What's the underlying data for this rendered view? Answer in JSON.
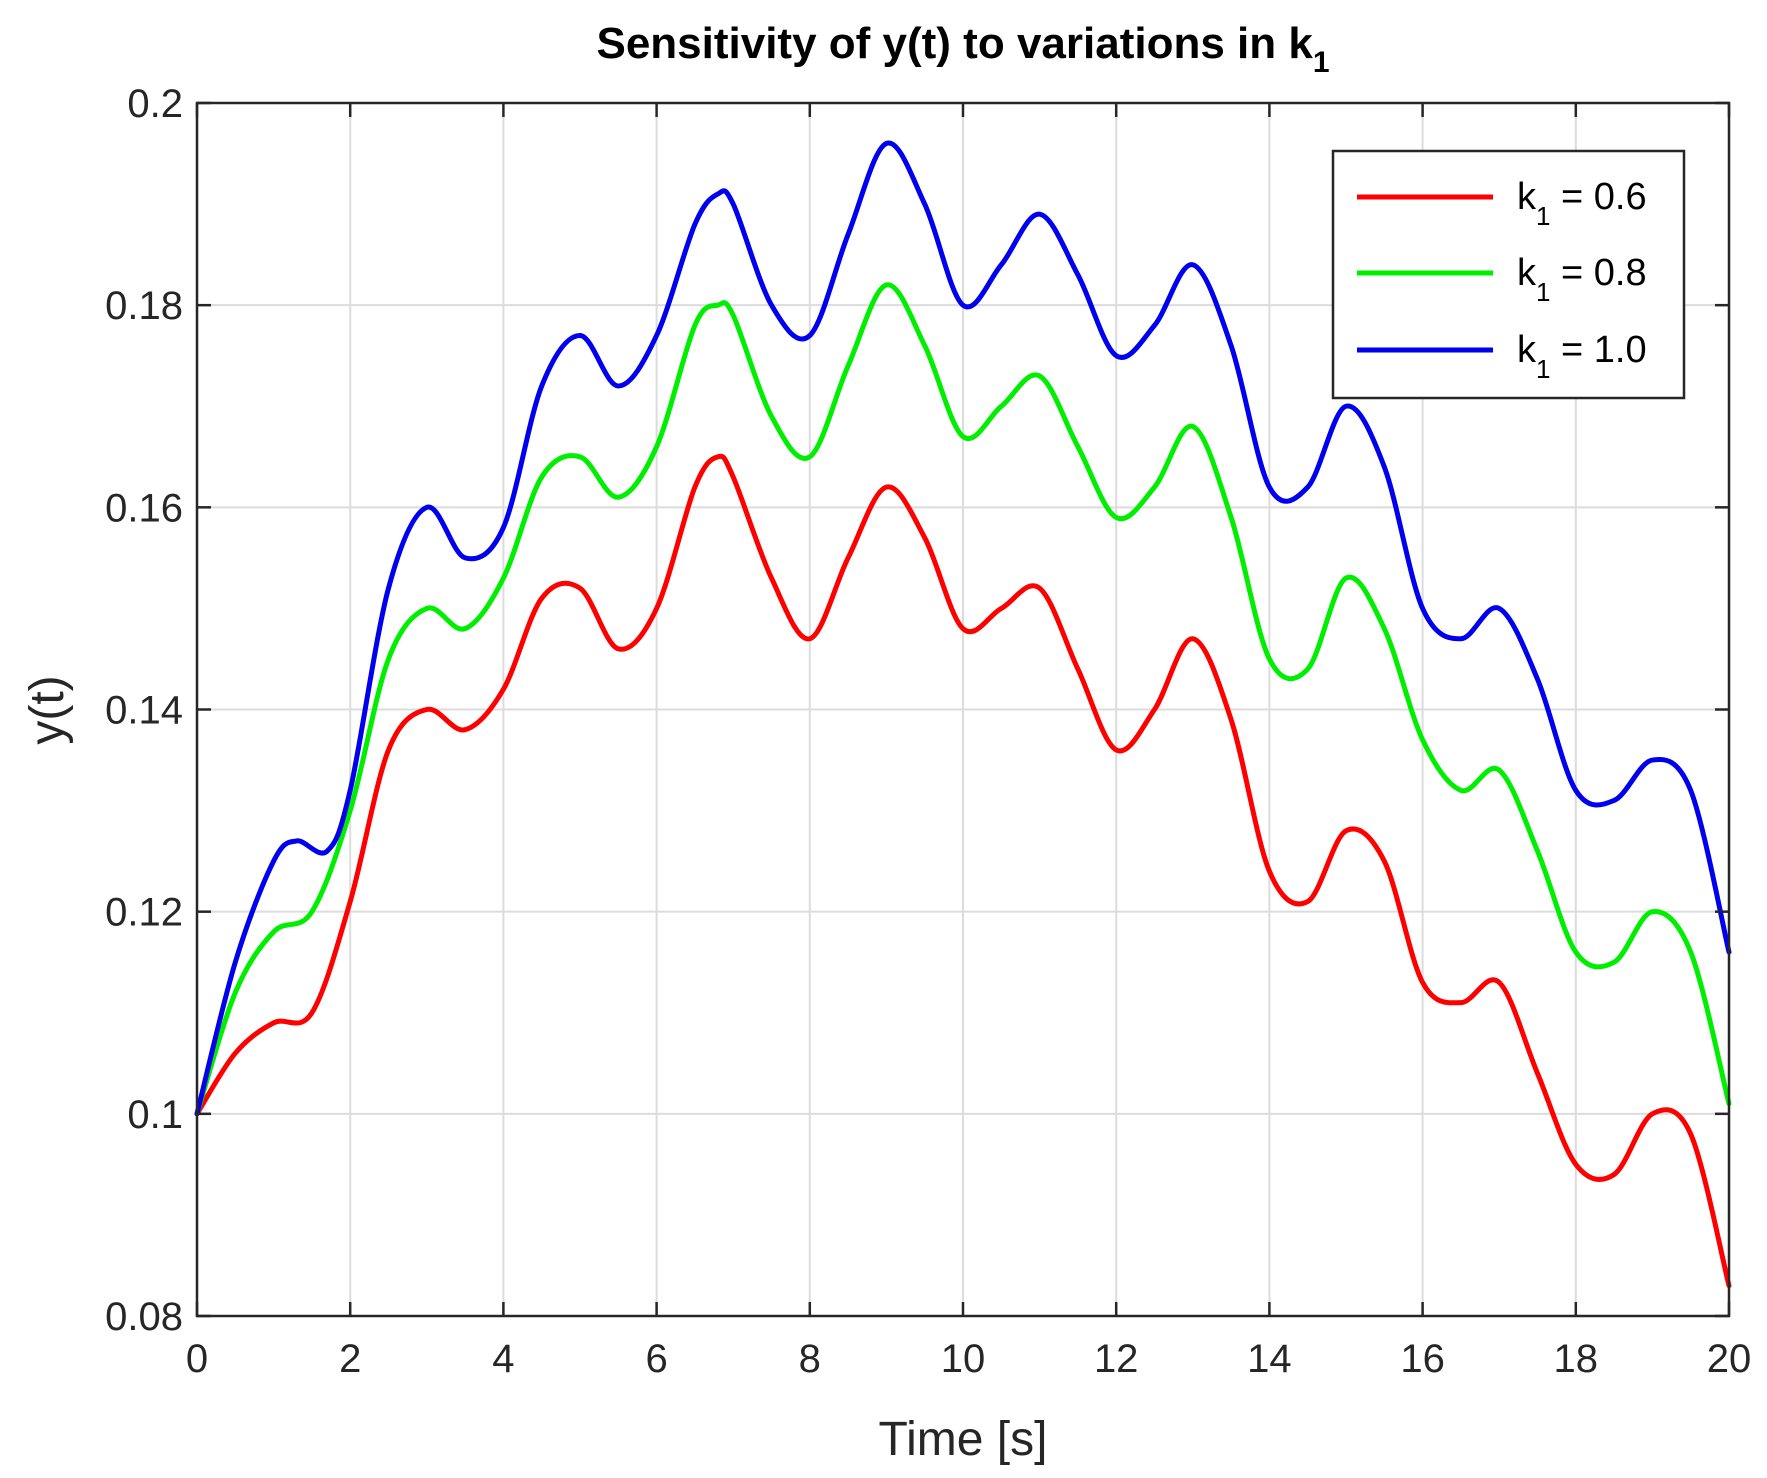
{
  "chart_data": {
    "type": "line",
    "title": "Sensitivity of y(t) to variations in k",
    "title_subscript": "1",
    "xlabel": "Time [s]",
    "ylabel": "y(t)",
    "xlim": [
      0,
      20
    ],
    "ylim": [
      0.08,
      0.2
    ],
    "xticks": [
      0,
      2,
      4,
      6,
      8,
      10,
      12,
      14,
      16,
      18,
      20
    ],
    "yticks": [
      0.08,
      0.1,
      0.12,
      0.14,
      0.16,
      0.18,
      0.2
    ],
    "xtick_labels": [
      "0",
      "2",
      "4",
      "6",
      "8",
      "10",
      "12",
      "14",
      "16",
      "18",
      "20"
    ],
    "ytick_labels": [
      "0.08",
      "0.1",
      "0.12",
      "0.14",
      "0.16",
      "0.18",
      "0.2"
    ],
    "grid": true,
    "legend_position": "top-right",
    "series": [
      {
        "name": "k1 = 0.6",
        "legend_main": "k",
        "legend_sub": "1",
        "legend_rest": " = 0.6",
        "color": "#ff0000",
        "points": [
          [
            0,
            0.1
          ],
          [
            0.5,
            0.106
          ],
          [
            1,
            0.109
          ],
          [
            1.5,
            0.11
          ],
          [
            2,
            0.121
          ],
          [
            2.5,
            0.136
          ],
          [
            3,
            0.14
          ],
          [
            3.5,
            0.138
          ],
          [
            4,
            0.142
          ],
          [
            4.5,
            0.151
          ],
          [
            5,
            0.152
          ],
          [
            5.5,
            0.146
          ],
          [
            6,
            0.15
          ],
          [
            6.5,
            0.162
          ],
          [
            6.8,
            0.165
          ],
          [
            7,
            0.163
          ],
          [
            7.5,
            0.153
          ],
          [
            8,
            0.147
          ],
          [
            8.5,
            0.155
          ],
          [
            9,
            0.162
          ],
          [
            9.5,
            0.157
          ],
          [
            10,
            0.148
          ],
          [
            10.5,
            0.15
          ],
          [
            11,
            0.152
          ],
          [
            11.5,
            0.144
          ],
          [
            12,
            0.136
          ],
          [
            12.5,
            0.14
          ],
          [
            13,
            0.147
          ],
          [
            13.5,
            0.139
          ],
          [
            14,
            0.124
          ],
          [
            14.5,
            0.121
          ],
          [
            15,
            0.128
          ],
          [
            15.5,
            0.125
          ],
          [
            16,
            0.113
          ],
          [
            16.5,
            0.111
          ],
          [
            17,
            0.113
          ],
          [
            17.5,
            0.104
          ],
          [
            18,
            0.095
          ],
          [
            18.5,
            0.094
          ],
          [
            19,
            0.1
          ],
          [
            19.5,
            0.098
          ],
          [
            20,
            0.083
          ]
        ]
      },
      {
        "name": "k1 = 0.8",
        "legend_main": "k",
        "legend_sub": "1",
        "legend_rest": " = 0.8",
        "color": "#00ee00",
        "points": [
          [
            0,
            0.1
          ],
          [
            0.5,
            0.112
          ],
          [
            1,
            0.118
          ],
          [
            1.5,
            0.12
          ],
          [
            2,
            0.13
          ],
          [
            2.5,
            0.145
          ],
          [
            3,
            0.15
          ],
          [
            3.5,
            0.148
          ],
          [
            4,
            0.153
          ],
          [
            4.5,
            0.163
          ],
          [
            5,
            0.165
          ],
          [
            5.5,
            0.161
          ],
          [
            6,
            0.166
          ],
          [
            6.5,
            0.178
          ],
          [
            6.8,
            0.18
          ],
          [
            7,
            0.179
          ],
          [
            7.5,
            0.169
          ],
          [
            8,
            0.165
          ],
          [
            8.5,
            0.174
          ],
          [
            9,
            0.182
          ],
          [
            9.5,
            0.176
          ],
          [
            10,
            0.167
          ],
          [
            10.5,
            0.17
          ],
          [
            11,
            0.173
          ],
          [
            11.5,
            0.166
          ],
          [
            12,
            0.159
          ],
          [
            12.5,
            0.162
          ],
          [
            13,
            0.168
          ],
          [
            13.5,
            0.159
          ],
          [
            14,
            0.145
          ],
          [
            14.5,
            0.144
          ],
          [
            15,
            0.153
          ],
          [
            15.5,
            0.148
          ],
          [
            16,
            0.137
          ],
          [
            16.5,
            0.132
          ],
          [
            17,
            0.134
          ],
          [
            17.5,
            0.126
          ],
          [
            18,
            0.116
          ],
          [
            18.5,
            0.115
          ],
          [
            19,
            0.12
          ],
          [
            19.5,
            0.116
          ],
          [
            20,
            0.101
          ]
        ]
      },
      {
        "name": "k1 = 1.0",
        "legend_main": "k",
        "legend_sub": "1",
        "legend_rest": " = 1.0",
        "color": "#0000ee",
        "points": [
          [
            0,
            0.1
          ],
          [
            0.5,
            0.115
          ],
          [
            1,
            0.125
          ],
          [
            1.3,
            0.127
          ],
          [
            1.7,
            0.126
          ],
          [
            2,
            0.132
          ],
          [
            2.5,
            0.152
          ],
          [
            3,
            0.16
          ],
          [
            3.5,
            0.155
          ],
          [
            4,
            0.158
          ],
          [
            4.5,
            0.172
          ],
          [
            5,
            0.177
          ],
          [
            5.5,
            0.172
          ],
          [
            6,
            0.177
          ],
          [
            6.5,
            0.188
          ],
          [
            6.8,
            0.191
          ],
          [
            7,
            0.19
          ],
          [
            7.5,
            0.18
          ],
          [
            8,
            0.177
          ],
          [
            8.5,
            0.187
          ],
          [
            9,
            0.196
          ],
          [
            9.5,
            0.19
          ],
          [
            10,
            0.18
          ],
          [
            10.5,
            0.184
          ],
          [
            11,
            0.189
          ],
          [
            11.5,
            0.183
          ],
          [
            12,
            0.175
          ],
          [
            12.5,
            0.178
          ],
          [
            13,
            0.184
          ],
          [
            13.5,
            0.176
          ],
          [
            14,
            0.162
          ],
          [
            14.5,
            0.162
          ],
          [
            15,
            0.17
          ],
          [
            15.5,
            0.164
          ],
          [
            16,
            0.15
          ],
          [
            16.5,
            0.147
          ],
          [
            17,
            0.15
          ],
          [
            17.5,
            0.143
          ],
          [
            18,
            0.132
          ],
          [
            18.5,
            0.131
          ],
          [
            19,
            0.135
          ],
          [
            19.5,
            0.132
          ],
          [
            20,
            0.116
          ]
        ]
      }
    ]
  }
}
